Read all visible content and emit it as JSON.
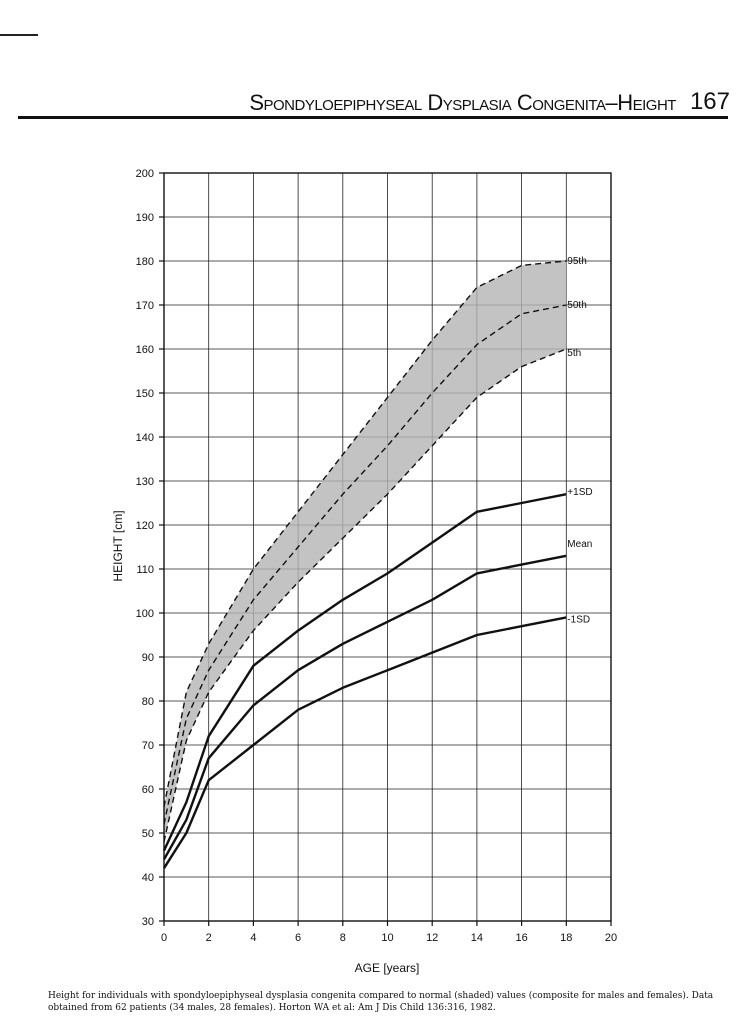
{
  "header": {
    "title": "Spondyloepiphyseal Dysplasia Congenita–Height",
    "page_number": "167"
  },
  "caption": "Height for individuals with spondyloepiphyseal dysplasia congenita compared to normal (shaded) values (composite for males and females). Data obtained from 62 patients (34 males, 28 females). Horton WA et al: Am J Dis Child 136:316, 1982.",
  "chart_data": {
    "type": "line",
    "title": "",
    "xlabel": "AGE [years]",
    "ylabel": "HEIGHT [cm]",
    "xlim": [
      0,
      20
    ],
    "ylim": [
      30,
      200
    ],
    "x_ticks": [
      0,
      2,
      4,
      6,
      8,
      10,
      12,
      14,
      16,
      18,
      20
    ],
    "y_ticks": [
      30,
      40,
      50,
      60,
      70,
      80,
      90,
      100,
      110,
      120,
      130,
      140,
      150,
      160,
      170,
      180,
      190,
      200
    ],
    "grid": true,
    "shaded_band": {
      "upper": "95th",
      "lower": "5th",
      "color": "#b4b4b4"
    },
    "series": [
      {
        "name": "95th",
        "group": "normal",
        "style": "dashed",
        "x": [
          0,
          1,
          2,
          4,
          6,
          8,
          10,
          12,
          14,
          16,
          18
        ],
        "y": [
          56,
          82,
          93,
          110,
          123,
          136,
          149,
          162,
          174,
          179,
          180
        ]
      },
      {
        "name": "50th",
        "group": "normal",
        "style": "dashed",
        "x": [
          0,
          1,
          2,
          4,
          6,
          8,
          10,
          12,
          14,
          16,
          18
        ],
        "y": [
          52,
          76,
          87,
          103,
          115,
          127,
          138,
          150,
          161,
          168,
          170
        ]
      },
      {
        "name": "5th",
        "group": "normal",
        "style": "dashed",
        "x": [
          0,
          1,
          2,
          4,
          6,
          8,
          10,
          12,
          14,
          16,
          18
        ],
        "y": [
          48,
          71,
          82,
          96,
          107,
          117,
          127,
          138,
          149,
          156,
          160
        ]
      },
      {
        "name": "+1SD",
        "group": "sedc",
        "style": "solid",
        "x": [
          0,
          1,
          2,
          4,
          6,
          8,
          10,
          12,
          14,
          16,
          18
        ],
        "y": [
          46,
          57,
          72,
          88,
          96,
          103,
          109,
          116,
          123,
          125,
          127
        ]
      },
      {
        "name": "Mean",
        "group": "sedc",
        "style": "solid",
        "x": [
          0,
          1,
          2,
          4,
          6,
          8,
          10,
          12,
          14,
          16,
          18
        ],
        "y": [
          44,
          53,
          67,
          79,
          87,
          93,
          98,
          103,
          109,
          111,
          113
        ]
      },
      {
        "name": "-1SD",
        "group": "sedc",
        "style": "solid",
        "x": [
          0,
          1,
          2,
          4,
          6,
          8,
          10,
          12,
          14,
          16,
          18
        ],
        "y": [
          42,
          50,
          62,
          70,
          78,
          83,
          87,
          91,
          95,
          97,
          99
        ]
      }
    ]
  }
}
